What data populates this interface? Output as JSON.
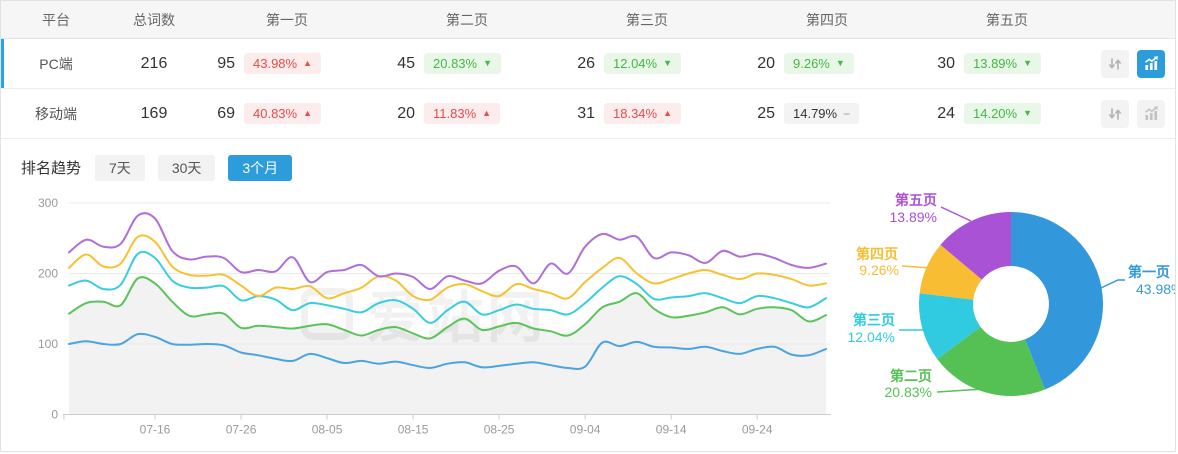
{
  "colors": {
    "accent": "#2d9cdb",
    "red": "#e64c4c",
    "red_bg": "#fcecec",
    "green": "#43b843",
    "green_bg": "#e9f7e9",
    "gray_bg": "#f3f3f3",
    "axis": "#999999",
    "grid": "#ebebeb"
  },
  "icons": {
    "sort": "sort-arrows-icon",
    "trend": "trend-chart-icon"
  },
  "table": {
    "headers": [
      "平台",
      "总词数",
      "第一页",
      "第二页",
      "第三页",
      "第四页",
      "第五页"
    ],
    "rows": [
      {
        "platform": "PC端",
        "selected": true,
        "total": "216",
        "pages": [
          {
            "count": "95",
            "pct": "43.98%",
            "dir": "up",
            "tone": "red"
          },
          {
            "count": "45",
            "pct": "20.83%",
            "dir": "down",
            "tone": "green"
          },
          {
            "count": "26",
            "pct": "12.04%",
            "dir": "down",
            "tone": "green"
          },
          {
            "count": "20",
            "pct": "9.26%",
            "dir": "down",
            "tone": "green"
          },
          {
            "count": "30",
            "pct": "13.89%",
            "dir": "down",
            "tone": "green"
          }
        ],
        "trend_active": true
      },
      {
        "platform": "移动端",
        "selected": false,
        "total": "169",
        "pages": [
          {
            "count": "69",
            "pct": "40.83%",
            "dir": "up",
            "tone": "red"
          },
          {
            "count": "20",
            "pct": "11.83%",
            "dir": "up",
            "tone": "red"
          },
          {
            "count": "31",
            "pct": "18.34%",
            "dir": "up",
            "tone": "red"
          },
          {
            "count": "25",
            "pct": "14.79%",
            "dir": "flat",
            "tone": "gray"
          },
          {
            "count": "24",
            "pct": "14.20%",
            "dir": "down",
            "tone": "green"
          }
        ],
        "trend_active": false
      }
    ]
  },
  "trend": {
    "title": "排名趋势",
    "tabs": [
      {
        "label": "7天",
        "active": false
      },
      {
        "label": "30天",
        "active": false
      },
      {
        "label": "3个月",
        "active": true
      }
    ]
  },
  "watermark": "爱站网",
  "chart_data": [
    {
      "type": "line",
      "title": "排名趋势 3个月",
      "smooth": true,
      "grid": true,
      "legend_position": "none",
      "ylim": [
        0,
        300
      ],
      "yticks": [
        0,
        100,
        200,
        300
      ],
      "x": [
        "07-06",
        "07-08",
        "07-10",
        "07-12",
        "07-14",
        "07-16",
        "07-18",
        "07-20",
        "07-22",
        "07-24",
        "07-26",
        "07-28",
        "07-30",
        "08-01",
        "08-03",
        "08-05",
        "08-07",
        "08-09",
        "08-11",
        "08-13",
        "08-15",
        "08-17",
        "08-19",
        "08-21",
        "08-23",
        "08-25",
        "08-27",
        "08-29",
        "08-31",
        "09-02",
        "09-04",
        "09-06",
        "09-08",
        "09-10",
        "09-12",
        "09-14",
        "09-16",
        "09-18",
        "09-20",
        "09-22",
        "09-24",
        "09-26",
        "09-28",
        "09-30",
        "10-02"
      ],
      "xticks": [
        "07-16",
        "07-26",
        "08-05",
        "08-15",
        "08-25",
        "09-04",
        "09-14",
        "09-24"
      ],
      "series": [
        {
          "name": "第一页",
          "color": "#4aa4e0",
          "values": [
            100,
            104,
            100,
            100,
            114,
            110,
            100,
            99,
            100,
            98,
            88,
            84,
            79,
            76,
            86,
            80,
            73,
            76,
            72,
            75,
            70,
            66,
            72,
            74,
            67,
            69,
            72,
            74,
            70,
            66,
            68,
            102,
            97,
            103,
            96,
            95,
            93,
            96,
            90,
            86,
            93,
            96,
            85,
            84,
            93
          ]
        },
        {
          "name": "第二页",
          "color": "#5ac35a",
          "area": "rgba(0,0,0,0.05)",
          "values": [
            143,
            158,
            160,
            155,
            193,
            186,
            160,
            140,
            142,
            143,
            123,
            126,
            124,
            122,
            126,
            128,
            120,
            112,
            120,
            124,
            115,
            108,
            124,
            136,
            120,
            125,
            130,
            122,
            118,
            112,
            128,
            152,
            160,
            172,
            150,
            138,
            140,
            145,
            152,
            142,
            150,
            152,
            148,
            132,
            141
          ]
        },
        {
          "name": "第三页",
          "color": "#38cde0",
          "values": [
            183,
            190,
            178,
            184,
            228,
            222,
            190,
            180,
            180,
            182,
            162,
            168,
            163,
            148,
            158,
            155,
            150,
            145,
            158,
            162,
            150,
            130,
            148,
            160,
            142,
            148,
            156,
            150,
            148,
            142,
            158,
            180,
            196,
            185,
            164,
            166,
            168,
            172,
            165,
            158,
            168,
            165,
            158,
            152,
            165
          ]
        },
        {
          "name": "第四页",
          "color": "#f8c12f",
          "values": [
            208,
            227,
            210,
            214,
            252,
            245,
            210,
            198,
            197,
            198,
            183,
            168,
            180,
            178,
            182,
            165,
            172,
            180,
            196,
            190,
            168,
            163,
            180,
            185,
            175,
            168,
            185,
            178,
            172,
            165,
            188,
            208,
            222,
            200,
            186,
            192,
            200,
            205,
            198,
            192,
            200,
            198,
            192,
            183,
            186
          ]
        },
        {
          "name": "第五页",
          "color": "#b06fd8",
          "values": [
            230,
            248,
            238,
            242,
            282,
            278,
            232,
            220,
            224,
            222,
            202,
            205,
            203,
            223,
            188,
            202,
            205,
            212,
            196,
            200,
            195,
            178,
            196,
            190,
            186,
            204,
            210,
            186,
            214,
            200,
            238,
            256,
            248,
            252,
            222,
            230,
            226,
            215,
            232,
            224,
            228,
            222,
            212,
            208,
            214
          ]
        }
      ]
    },
    {
      "type": "pie",
      "donut": true,
      "start_angle": "top",
      "direction": "clockwise",
      "label_position": "outside-callout",
      "labels": [
        "第一页",
        "第二页",
        "第三页",
        "第四页",
        "第五页"
      ],
      "values": [
        43.98,
        20.83,
        12.04,
        9.26,
        13.89
      ],
      "unit": "%",
      "colors": [
        "#3398db",
        "#55c155",
        "#30cbe0",
        "#f8bd32",
        "#aa52d6"
      ]
    }
  ]
}
